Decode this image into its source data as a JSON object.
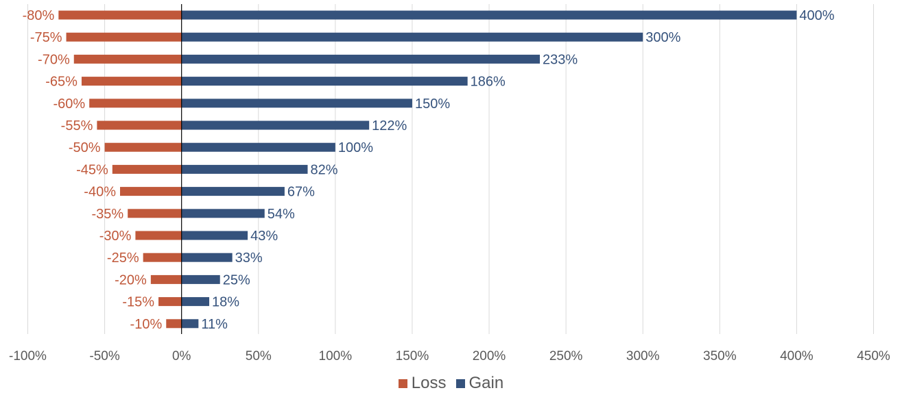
{
  "chart_data": {
    "type": "bar",
    "orientation": "horizontal",
    "categories": [
      "-80%",
      "-75%",
      "-70%",
      "-65%",
      "-60%",
      "-55%",
      "-50%",
      "-45%",
      "-40%",
      "-35%",
      "-30%",
      "-25%",
      "-20%",
      "-15%",
      "-10%"
    ],
    "series": [
      {
        "name": "Loss",
        "color": "#c0583a",
        "values": [
          -80,
          -75,
          -70,
          -65,
          -60,
          -55,
          -50,
          -45,
          -40,
          -35,
          -30,
          -25,
          -20,
          -15,
          -10
        ],
        "labels": [
          "-80%",
          "-75%",
          "-70%",
          "-65%",
          "-60%",
          "-55%",
          "-50%",
          "-45%",
          "-40%",
          "-35%",
          "-30%",
          "-25%",
          "-20%",
          "-15%",
          "-10%"
        ]
      },
      {
        "name": "Gain",
        "color": "#35527c",
        "values": [
          400,
          300,
          233,
          186,
          150,
          122,
          100,
          82,
          67,
          54,
          43,
          33,
          25,
          18,
          11
        ],
        "labels": [
          "400%",
          "300%",
          "233%",
          "186%",
          "150%",
          "122%",
          "100%",
          "82%",
          "67%",
          "54%",
          "43%",
          "33%",
          "25%",
          "18%",
          "11%"
        ]
      }
    ],
    "xlim": [
      -100,
      450
    ],
    "xticks": [
      -100,
      -50,
      0,
      50,
      100,
      150,
      200,
      250,
      300,
      350,
      400,
      450
    ],
    "xtick_labels": [
      "-100%",
      "-50%",
      "0%",
      "50%",
      "100%",
      "150%",
      "200%",
      "250%",
      "300%",
      "350%",
      "400%",
      "450%"
    ],
    "title": "",
    "xlabel": "",
    "ylabel": "",
    "grid": "vertical",
    "legend_position": "bottom"
  },
  "legend": {
    "loss_label": "Loss",
    "gain_label": "Gain"
  },
  "colors": {
    "loss": "#c0583a",
    "gain": "#35527c"
  }
}
